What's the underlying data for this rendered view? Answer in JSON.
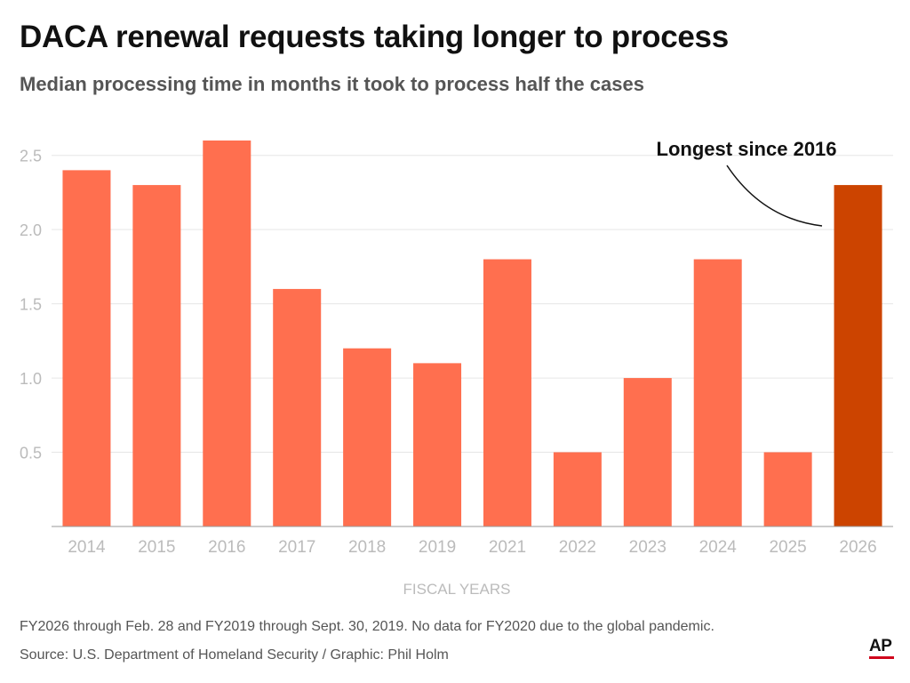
{
  "title": "DACA renewal requests taking longer to process",
  "subtitle": "Median processing time in months it took to process half the cases",
  "footnote": "FY2026 through Feb. 28 and FY2019 through Sept. 30, 2019. No data for FY2020 due to the global pandemic.",
  "source": "Source: U.S. Department of Homeland Security / Graphic: Phil Holm",
  "logo": "AP",
  "colors": {
    "bar": "#ff6f4f",
    "highlight": "#cc4400",
    "grid": "#e6e6e6",
    "tick_text": "#bbbbbb",
    "axis_text": "#555555"
  },
  "chart_data": {
    "type": "bar",
    "categories": [
      "2014",
      "2015",
      "2016",
      "2017",
      "2018",
      "2019",
      "2021",
      "2022",
      "2023",
      "2024",
      "2025",
      "2026"
    ],
    "values": [
      2.4,
      2.3,
      2.6,
      1.6,
      1.2,
      1.1,
      1.8,
      0.5,
      1.0,
      1.8,
      0.5,
      2.3
    ],
    "highlight_category": "2026",
    "xlabel": "FISCAL YEARS",
    "ylabel": "",
    "ylim": [
      0,
      2.6
    ],
    "yticks": [
      "0.5",
      "1.0",
      "1.5",
      "2.0",
      "2.5"
    ],
    "grid": true,
    "annotation": {
      "text": "Longest since 2016",
      "category": "2026"
    }
  }
}
